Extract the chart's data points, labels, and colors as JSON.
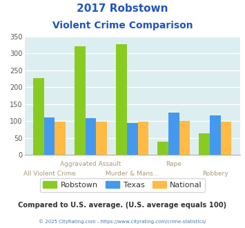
{
  "title_line1": "2017 Robstown",
  "title_line2": "Violent Crime Comparison",
  "categories": [
    "All Violent Crime",
    "Aggravated Assault",
    "Murder & Mans...",
    "Rape",
    "Robbery"
  ],
  "robstown": [
    227,
    322,
    328,
    40,
    65
  ],
  "texas": [
    110,
    109,
    95,
    125,
    117
  ],
  "national": [
    99,
    99,
    99,
    100,
    99
  ],
  "color_robstown": "#88cc22",
  "color_texas": "#4499ee",
  "color_national": "#ffbb44",
  "ylim": [
    0,
    350
  ],
  "yticks": [
    0,
    50,
    100,
    150,
    200,
    250,
    300,
    350
  ],
  "background_color": "#ddeef0",
  "title_color": "#2255bb",
  "xlabel_color": "#aa9977",
  "footer_text": "Compared to U.S. average. (U.S. average equals 100)",
  "footer_color": "#333333",
  "copyright_text": "© 2025 CityRating.com - https://www.cityrating.com/crime-statistics/",
  "copyright_color": "#4477aa",
  "legend_labels": [
    "Robstown",
    "Texas",
    "National"
  ],
  "legend_text_color": "#333333"
}
